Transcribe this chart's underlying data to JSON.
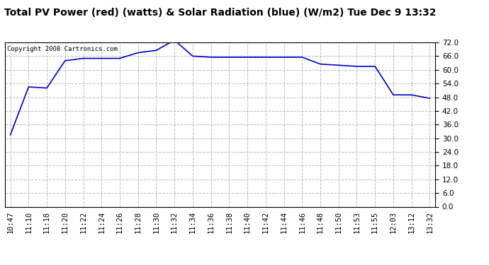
{
  "title": "Total PV Power (red) (watts) & Solar Radiation (blue) (W/m2) Tue Dec 9 13:32",
  "copyright": "Copyright 2008 Cartronics.com",
  "line_color": "#0000CC",
  "line_width": 1.2,
  "bg_color": "#ffffff",
  "plot_bg_color": "#ffffff",
  "ylim": [
    0.0,
    72.0
  ],
  "yticks": [
    0.0,
    6.0,
    12.0,
    18.0,
    24.0,
    30.0,
    36.0,
    42.0,
    48.0,
    54.0,
    60.0,
    66.0,
    72.0
  ],
  "x_labels": [
    "10:47",
    "11:10",
    "11:18",
    "11:20",
    "11:22",
    "11:24",
    "11:26",
    "11:28",
    "11:30",
    "11:32",
    "11:34",
    "11:36",
    "11:38",
    "11:40",
    "11:42",
    "11:44",
    "11:46",
    "11:48",
    "11:50",
    "11:53",
    "11:55",
    "12:03",
    "13:12",
    "13:32"
  ],
  "y_values": [
    31.5,
    52.5,
    52.0,
    64.0,
    65.0,
    65.0,
    65.0,
    67.5,
    68.5,
    73.0,
    66.0,
    65.5,
    65.5,
    65.5,
    65.5,
    65.5,
    65.5,
    62.5,
    62.0,
    61.5,
    61.5,
    49.0,
    49.0,
    47.5
  ],
  "title_fontsize": 10,
  "tick_fontsize": 7.5,
  "copyright_fontsize": 6.5,
  "grid_color": "#aaaaaa",
  "grid_style": "--",
  "grid_alpha": 0.8
}
